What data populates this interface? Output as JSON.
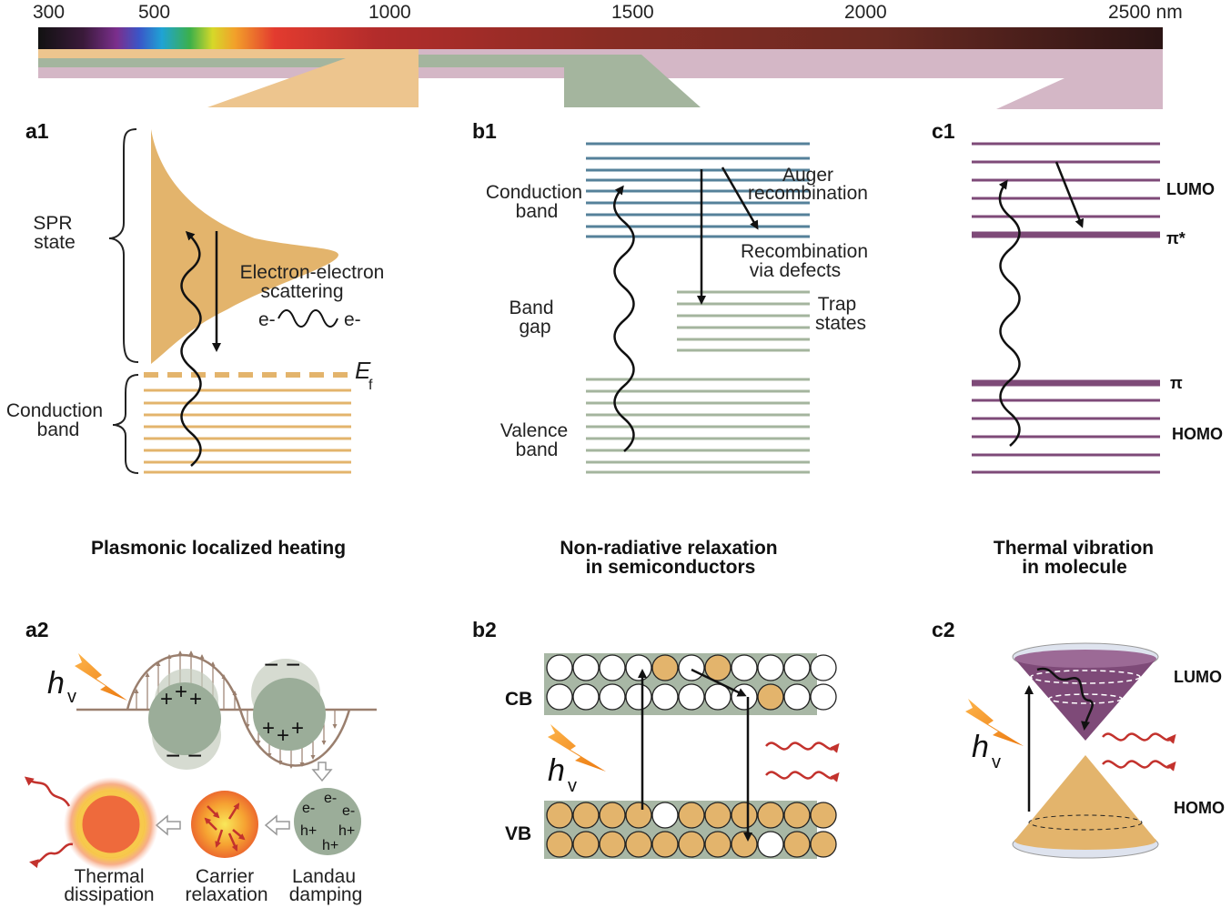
{
  "spectrum": {
    "ticks": [
      "300",
      "500",
      "1000",
      "1500",
      "2000",
      "2500 nm"
    ]
  },
  "panels": {
    "a1": {
      "tag": "a1",
      "spr_state": [
        "SPR",
        "state"
      ],
      "scattering": [
        "Electron-electron",
        "scattering"
      ],
      "e_left": "e-",
      "e_right": "e-",
      "ef_main": "E",
      "ef_sub": "f",
      "conduction": [
        "Conduction",
        "band"
      ],
      "title": "Plasmonic localized heating"
    },
    "b1": {
      "tag": "b1",
      "conduction": [
        "Conduction",
        "band"
      ],
      "auger": [
        "Auger",
        "recombination"
      ],
      "defects": [
        "Recombination",
        "via defects"
      ],
      "band_gap": [
        "Band",
        "gap"
      ],
      "trap": [
        "Trap",
        "states"
      ],
      "valence": [
        "Valence",
        "band"
      ],
      "title": [
        "Non-radiative relaxation",
        "in semiconductors"
      ]
    },
    "c1": {
      "tag": "c1",
      "lumo": "LUMO",
      "pi_star": "π*",
      "pi": "π",
      "homo": "HOMO",
      "title": [
        "Thermal vibration",
        "in molecule"
      ]
    },
    "a2": {
      "tag": "a2",
      "hv_main": "h",
      "hv_sub": "v",
      "plus": "+",
      "minus": "−",
      "charges": [
        "e-",
        "e-",
        "e-",
        "h+",
        "h+",
        "h+"
      ],
      "thermal": [
        "Thermal",
        "dissipation"
      ],
      "carrier": [
        "Carrier",
        "relaxation"
      ],
      "landau": [
        "Landau",
        "damping"
      ]
    },
    "b2": {
      "tag": "b2",
      "cb": "CB",
      "vb": "VB",
      "hv_main": "h",
      "hv_sub": "v"
    },
    "c2": {
      "tag": "c2",
      "lumo": "LUMO",
      "homo": "HOMO",
      "hv_main": "h",
      "hv_sub": "v"
    }
  },
  "colors": {
    "gold": "#E3B46C",
    "gold_light": "#EDC58E",
    "teal": "#55819A",
    "sage": "#A4B59E",
    "purple": "#7E4A78",
    "mauve": "#D4B7C6",
    "green_gray": "#A8B7A5",
    "sphere_green": "#9BAD99",
    "red": "#C3322D",
    "orange": "#F08A1C"
  }
}
